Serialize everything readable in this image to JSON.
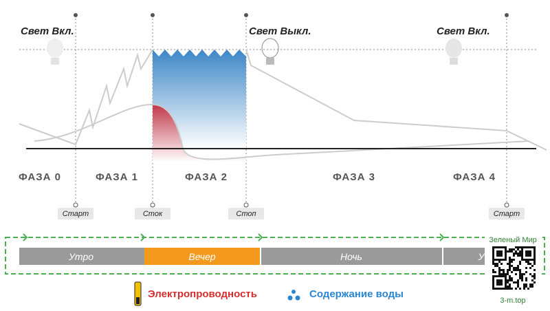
{
  "light_labels": [
    "Свет Вкл.",
    "Свет Выкл.",
    "Свет Вкл."
  ],
  "phases": [
    "ФАЗА 0",
    "ФАЗА 1",
    "ФАЗА 2",
    "ФАЗА 3",
    "ФАЗА 4"
  ],
  "markers": [
    "Старт",
    "Сток",
    "Стоп",
    "Старт"
  ],
  "periods": [
    "Утро",
    "Вечер",
    "Ночь",
    "У"
  ],
  "legend": [
    "Электропроводность",
    "Содержание воды"
  ],
  "watermark": {
    "title": "Зеленый Мир",
    "site": "3-m.top"
  }
}
